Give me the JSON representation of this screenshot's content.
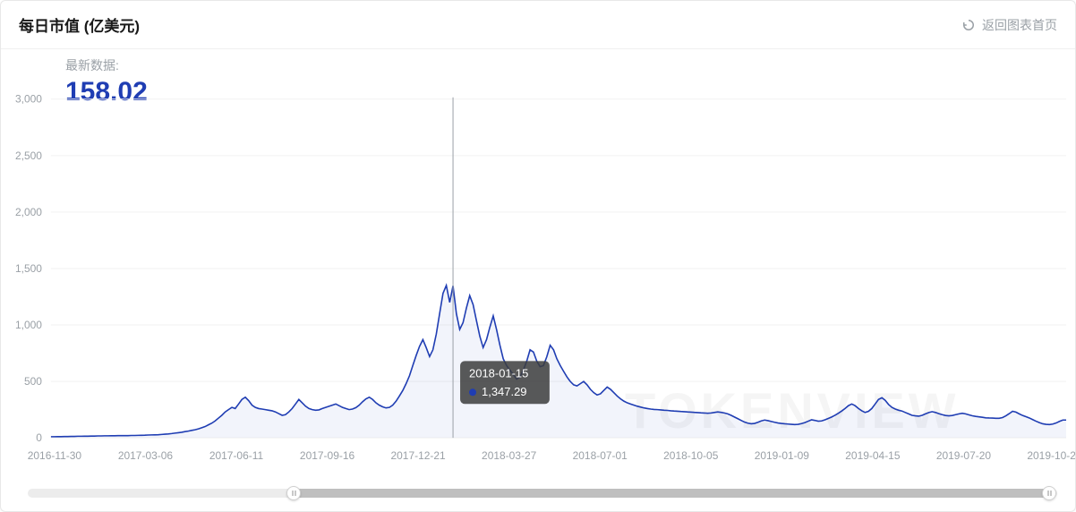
{
  "header": {
    "title": "每日市值 (亿美元)",
    "back_label": "返回图表首页"
  },
  "latest": {
    "label": "最新数据:",
    "value": "158.02"
  },
  "chart": {
    "type": "line",
    "line_color": "#1f3db3",
    "line_width": 1.6,
    "background_color": "#ffffff",
    "grid_color": "#f2f2f2",
    "axis_label_color": "#9aa0a6",
    "axis_label_fontsize": 12,
    "ylim": [
      0,
      3000
    ],
    "ytick_step": 500,
    "yticks": [
      0,
      500,
      1000,
      1500,
      2000,
      2500,
      3000
    ],
    "x_labels": [
      "2016-11-30",
      "2017-03-06",
      "2017-06-11",
      "2017-09-16",
      "2017-12-21",
      "2018-03-27",
      "2018-07-01",
      "2018-10-05",
      "2019-01-09",
      "2019-04-15",
      "2019-07-20",
      "2019-10-24"
    ],
    "watermark_text": "TOKENVIEW",
    "watermark_color": "#ededed",
    "watermark_fontsize": 56,
    "area_fill_opacity": 0.06,
    "series": [
      10,
      10,
      11,
      11,
      12,
      12,
      13,
      13,
      14,
      14,
      15,
      15,
      16,
      16,
      17,
      17,
      18,
      18,
      19,
      19,
      20,
      20,
      20,
      20,
      21,
      21,
      22,
      23,
      24,
      25,
      26,
      27,
      28,
      30,
      32,
      35,
      38,
      42,
      46,
      50,
      55,
      60,
      66,
      72,
      80,
      90,
      100,
      115,
      130,
      150,
      175,
      200,
      230,
      250,
      270,
      260,
      300,
      340,
      360,
      330,
      290,
      270,
      260,
      255,
      250,
      245,
      240,
      230,
      215,
      200,
      205,
      230,
      260,
      300,
      340,
      310,
      280,
      260,
      250,
      245,
      248,
      260,
      270,
      280,
      290,
      300,
      285,
      270,
      260,
      250,
      255,
      268,
      290,
      320,
      345,
      360,
      340,
      310,
      290,
      275,
      265,
      270,
      290,
      325,
      370,
      420,
      480,
      550,
      640,
      730,
      810,
      870,
      800,
      720,
      780,
      920,
      1100,
      1280,
      1350,
      1200,
      1347,
      1100,
      960,
      1020,
      1150,
      1260,
      1180,
      1040,
      900,
      800,
      870,
      980,
      1080,
      960,
      820,
      700,
      640,
      600,
      560,
      520,
      540,
      600,
      680,
      780,
      760,
      680,
      630,
      640,
      720,
      820,
      780,
      700,
      640,
      590,
      540,
      500,
      470,
      460,
      480,
      500,
      470,
      430,
      400,
      380,
      390,
      420,
      450,
      430,
      400,
      370,
      345,
      325,
      310,
      300,
      290,
      280,
      272,
      265,
      260,
      255,
      252,
      250,
      248,
      245,
      243,
      240,
      238,
      236,
      234,
      232,
      230,
      228,
      226,
      224,
      222,
      220,
      218,
      220,
      225,
      230,
      226,
      220,
      212,
      200,
      185,
      170,
      155,
      140,
      130,
      125,
      128,
      138,
      150,
      158,
      152,
      145,
      138,
      132,
      128,
      125,
      122,
      120,
      118,
      120,
      126,
      135,
      148,
      160,
      155,
      148,
      150,
      160,
      172,
      185,
      200,
      218,
      238,
      260,
      285,
      300,
      285,
      260,
      240,
      225,
      235,
      260,
      300,
      340,
      355,
      332,
      295,
      270,
      255,
      245,
      238,
      225,
      212,
      200,
      195,
      192,
      200,
      212,
      224,
      232,
      225,
      215,
      205,
      198,
      195,
      198,
      205,
      212,
      218,
      212,
      204,
      196,
      190,
      186,
      182,
      178,
      176,
      175,
      174,
      174,
      180,
      195,
      215,
      235,
      228,
      212,
      198,
      188,
      176,
      162,
      148,
      135,
      125,
      120,
      118,
      122,
      132,
      146,
      158,
      158
    ],
    "crosshair": {
      "index": 120,
      "date_label": "2018-01-15",
      "value_label": "1,347.29",
      "box_bg": "rgba(60,60,60,0.85)",
      "box_text_color": "#ffffff",
      "marker_color": "#1f3db3"
    }
  },
  "slider": {
    "fill_start_pct": 25.8,
    "fill_end_pct": 99.2,
    "track_color": "#ececec",
    "fill_color": "#bfbfbf",
    "handle_border": "#d0d0d0"
  }
}
